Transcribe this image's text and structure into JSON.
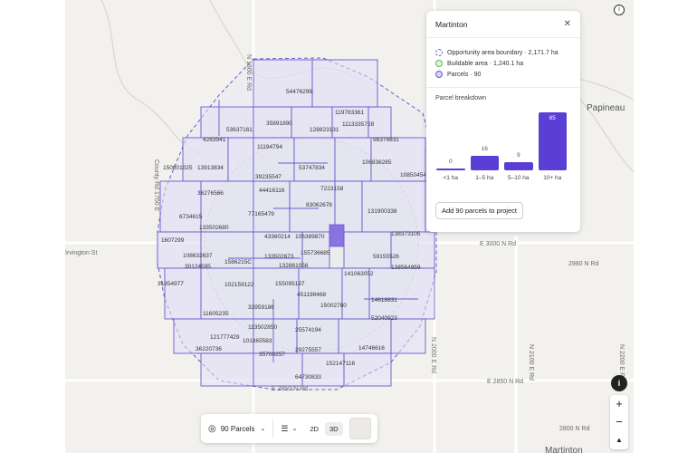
{
  "map": {
    "place_labels": [
      "Papineau",
      "Martinton"
    ],
    "road_labels": [
      "E 3000 N Rd",
      "2980 N Rd",
      "E 2850 N Rd",
      "E 2850 N Rd",
      "2800 N Rd",
      "N 1800 E Rd",
      "County Rd 1700 E",
      "N 2000 E Rd",
      "N 2100 E Rd",
      "N 2200 E Rd",
      "Irvington St"
    ],
    "parcel_ids": [
      "54476299",
      "119783361",
      "35891890",
      "1113335728",
      "53637161",
      "128823131",
      "98379831",
      "4283941",
      "11194794",
      "150801025",
      "13913834",
      "39235547",
      "53747834",
      "106838285",
      "10850454",
      "36276566",
      "44416116",
      "7223158",
      "6734615",
      "83062678",
      "131900338",
      "133502680",
      "77165479",
      "1607299",
      "43360214",
      "106389870",
      "138373105",
      "108632637",
      "133502673",
      "155736685",
      "59155526",
      "30124595",
      "1586215C",
      "132861056",
      "138564959",
      "31854977",
      "102159122",
      "155095197",
      "141063052",
      "451198468",
      "14618831",
      "11605235",
      "33959186",
      "15002780",
      "52040923",
      "113502850",
      "25574194",
      "121777429",
      "101865583",
      "14746616",
      "36220736",
      "35700257",
      "29275557",
      "152147116",
      "64730833"
    ]
  },
  "panel": {
    "title": "Martinton",
    "close_icon": "close-icon",
    "legend": [
      {
        "icon": "dashed-circle-icon",
        "label": "Opportunity area boundary",
        "value": "2,171.7 ha"
      },
      {
        "icon": "green-circle-icon",
        "label": "Buildable area",
        "value": "1,240.1 ha"
      },
      {
        "icon": "purple-circle-icon",
        "label": "Parcels",
        "value": "90"
      }
    ],
    "breakdown_title": "Parcel breakdown",
    "add_button": "Add 90 parcels to project"
  },
  "chart_data": {
    "type": "bar",
    "title": "Parcel breakdown",
    "categories": [
      "<1 ha",
      "1–5 ha",
      "5–10 ha",
      "10+ ha"
    ],
    "values": [
      0,
      16,
      9,
      65
    ],
    "bar_color": "#5b3fd4"
  },
  "controls": {
    "info_top": "i",
    "info_bottom": "i",
    "zoom_in": "+",
    "zoom_out": "−",
    "compass": "▲"
  },
  "toolbar": {
    "parcels_select": "90 Parcels",
    "view_2d": "2D",
    "view_3d": "3D"
  },
  "colors": {
    "accent": "#5b3fd4",
    "parcel_fill": "#e6e3f7",
    "parcel_stroke": "#6a5acd",
    "buildable_fill": "#e3f0e0"
  }
}
